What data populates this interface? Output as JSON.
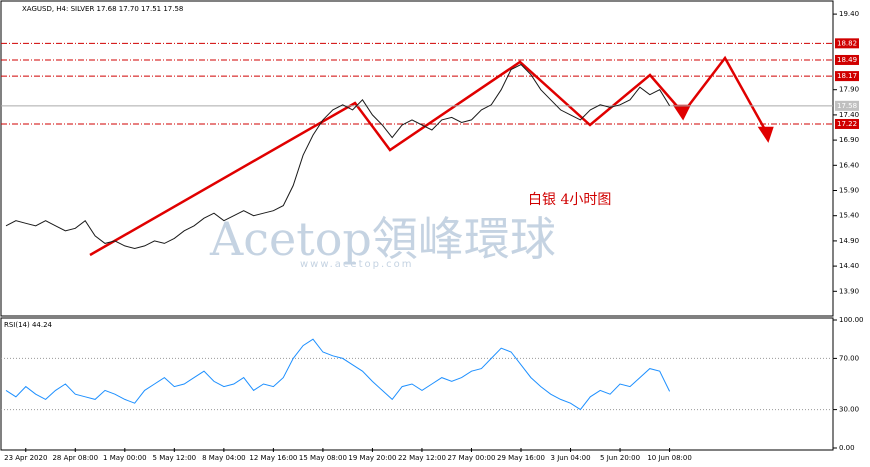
{
  "chart_data": [
    {
      "type": "line",
      "title": "XAGUSD, H4: SILVER 17.68 17.70 17.51 17.58",
      "annotation": "白银  4小时图",
      "watermark": "Acetop領峰環球",
      "watermark_url": "www.acetop.com",
      "categories": [
        null,
        null,
        "23 Apr 2020",
        null,
        null,
        null,
        null,
        "28 Apr 08:00",
        null,
        null,
        null,
        null,
        "1 May 00:00",
        null,
        null,
        null,
        null,
        "5 May 12:00",
        null,
        null,
        null,
        null,
        "8 May 04:00",
        null,
        null,
        null,
        null,
        "12 May 16:00",
        null,
        null,
        null,
        null,
        "15 May 08:00",
        null,
        null,
        null,
        null,
        "19 May 20:00",
        null,
        null,
        null,
        null,
        "22 May 12:00",
        null,
        null,
        null,
        null,
        "27 May 00:00",
        null,
        null,
        null,
        null,
        "29 May 16:00",
        null,
        null,
        null,
        null,
        "3 Jun 04:00",
        null,
        null,
        null,
        null,
        "5 Jun 20:00",
        null,
        null,
        null,
        null,
        "10 Jun 08:00",
        null,
        null,
        null,
        null,
        null,
        null,
        null,
        null,
        null,
        null,
        null,
        null,
        null,
        null,
        null,
        null
      ],
      "series": [
        {
          "name": "XAGUSD",
          "color": "#1a1a1a",
          "values": [
            15.2,
            15.3,
            15.25,
            15.2,
            15.3,
            15.2,
            15.1,
            15.15,
            15.3,
            15.0,
            14.85,
            14.9,
            14.8,
            14.75,
            14.8,
            14.9,
            14.85,
            14.95,
            15.1,
            15.2,
            15.35,
            15.45,
            15.3,
            15.4,
            15.5,
            15.4,
            15.45,
            15.5,
            15.6,
            16.0,
            16.6,
            17.0,
            17.3,
            17.5,
            17.6,
            17.5,
            17.7,
            17.4,
            17.2,
            16.95,
            17.2,
            17.3,
            17.2,
            17.1,
            17.3,
            17.35,
            17.25,
            17.3,
            17.5,
            17.6,
            17.9,
            18.3,
            18.4,
            18.2,
            17.9,
            17.7,
            17.5,
            17.4,
            17.3,
            17.5,
            17.6,
            17.55,
            17.6,
            17.7,
            17.95,
            17.8,
            17.9,
            17.58,
            null,
            null,
            null,
            null,
            null,
            null,
            null,
            null,
            null,
            null,
            null,
            null,
            null,
            null,
            null,
            null
          ]
        }
      ],
      "ylim": [
        13.41,
        19.66
      ],
      "yticks": [
        {
          "value": 19.4,
          "label": "19.40"
        },
        {
          "value": 17.9,
          "label": "17.90"
        },
        {
          "value": 17.4,
          "label": "17.40"
        },
        {
          "value": 16.9,
          "label": "16.90"
        },
        {
          "value": 16.4,
          "label": "16.40"
        },
        {
          "value": 15.9,
          "label": "15.90"
        },
        {
          "value": 15.4,
          "label": "15.40"
        },
        {
          "value": 14.9,
          "label": "14.90"
        },
        {
          "value": 14.4,
          "label": "14.40"
        },
        {
          "value": 13.9,
          "label": "13.90"
        }
      ],
      "levels": [
        {
          "value": 18.82,
          "label": "18.82"
        },
        {
          "value": 18.49,
          "label": "18.49"
        },
        {
          "value": 18.17,
          "label": "18.17"
        },
        {
          "value": 17.22,
          "label": "17.22"
        }
      ],
      "level_color": "#d00000",
      "current_price": {
        "value": 17.58,
        "label": "17.58"
      }
    },
    {
      "type": "line",
      "title": "RSI(14) 44.24",
      "series": [
        {
          "name": "RSI(14)",
          "color": "#1e90ff",
          "values": [
            45,
            40,
            48,
            42,
            38,
            45,
            50,
            42,
            40,
            38,
            45,
            42,
            38,
            35,
            45,
            50,
            55,
            48,
            50,
            55,
            60,
            52,
            48,
            50,
            55,
            45,
            50,
            48,
            55,
            70,
            80,
            85,
            75,
            72,
            70,
            65,
            60,
            52,
            45,
            38,
            48,
            50,
            45,
            50,
            55,
            52,
            55,
            60,
            62,
            70,
            78,
            75,
            65,
            55,
            48,
            42,
            38,
            35,
            30,
            40,
            45,
            42,
            50,
            48,
            55,
            62,
            60,
            44.24,
            null,
            null,
            null,
            null,
            null,
            null,
            null,
            null,
            null,
            null,
            null,
            null,
            null,
            null,
            null,
            null
          ]
        }
      ],
      "ylim": [
        0,
        100
      ],
      "yticks": [
        {
          "value": 100,
          "label": "100.00"
        },
        {
          "value": 70,
          "label": "70.00"
        },
        {
          "value": 30,
          "label": "30.00"
        },
        {
          "value": 0,
          "label": "0.00"
        }
      ]
    }
  ]
}
